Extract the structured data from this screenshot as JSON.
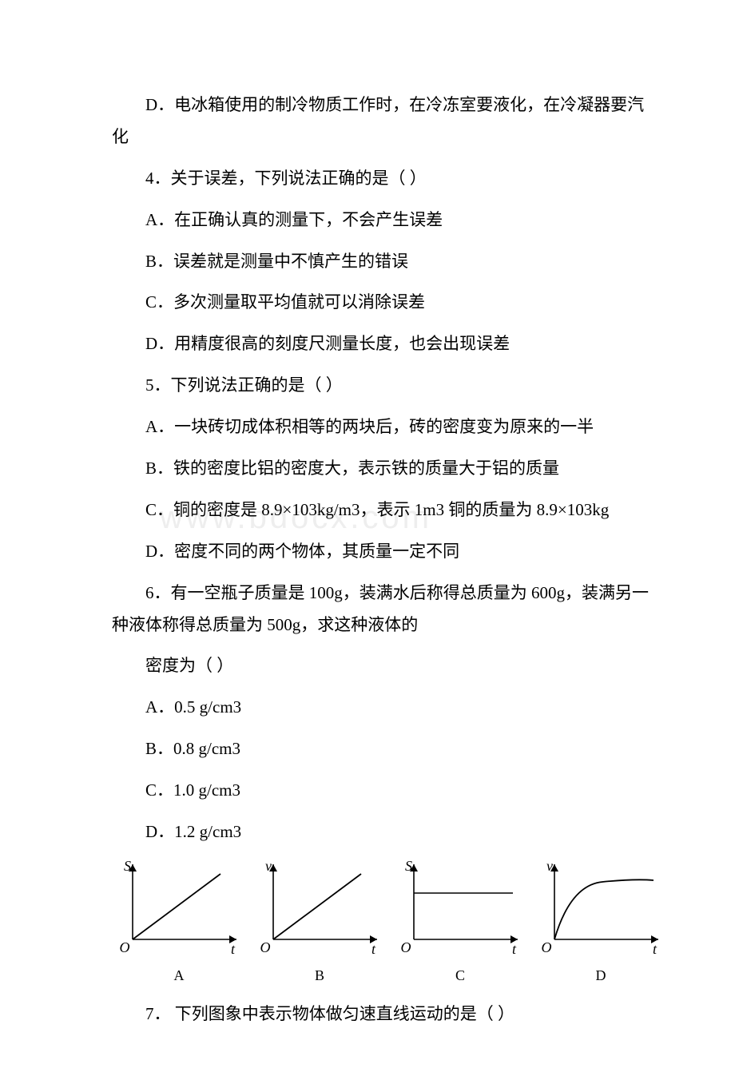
{
  "watermark": "www.bdocx.com",
  "q3_optD": "D．电冰箱使用的制冷物质工作时，在冷冻室要液化，在冷凝器要汽化",
  "q4_stem": "4．关于误差，下列说法正确的是（ ）",
  "q4_A": "A．在正确认真的测量下，不会产生误差",
  "q4_B": "B．误差就是测量中不慎产生的错误",
  "q4_C": "C．多次测量取平均值就可以消除误差",
  "q4_D": "D．用精度很高的刻度尺测量长度，也会出现误差",
  "q5_stem": "5．下列说法正确的是（ ）",
  "q5_A": "A．一块砖切成体积相等的两块后，砖的密度变为原来的一半",
  "q5_B": "B．铁的密度比铝的密度大，表示铁的质量大于铝的质量",
  "q5_C": "C．铜的密度是 8.9×103kg/m3，表示 1m3 铜的质量为 8.9×103kg",
  "q5_D": "D．密度不同的两个物体，其质量一定不同",
  "q6_stem1": "6．有一空瓶子质量是 100g，装满水后称得总质量为 600g，装满另一种液体称得总质量为 500g，求这种液体的",
  "q6_stem2": "密度为（ ）",
  "q6_A": "A．0.5 g/cm3",
  "q6_B": "B．0.8 g/cm3",
  "q6_C": "C．1.0 g/cm3",
  "q6_D": "D．1.2 g/cm3",
  "q7_stem": "7． 下列图象中表示物体做匀速直线运动的是（ ）",
  "charts": {
    "width": 168,
    "height": 128,
    "axis_color": "#000000",
    "line_color": "#000000",
    "label_font": "italic 18px serif",
    "caption_font": "18px SimSun",
    "origin_label": "O",
    "x_label": "t",
    "items": [
      {
        "id": "A",
        "y_label": "S",
        "type": "linear_up"
      },
      {
        "id": "B",
        "y_label": "v",
        "type": "linear_up"
      },
      {
        "id": "C",
        "y_label": "S",
        "type": "flat"
      },
      {
        "id": "D",
        "y_label": "v",
        "type": "sat_curve"
      }
    ]
  }
}
